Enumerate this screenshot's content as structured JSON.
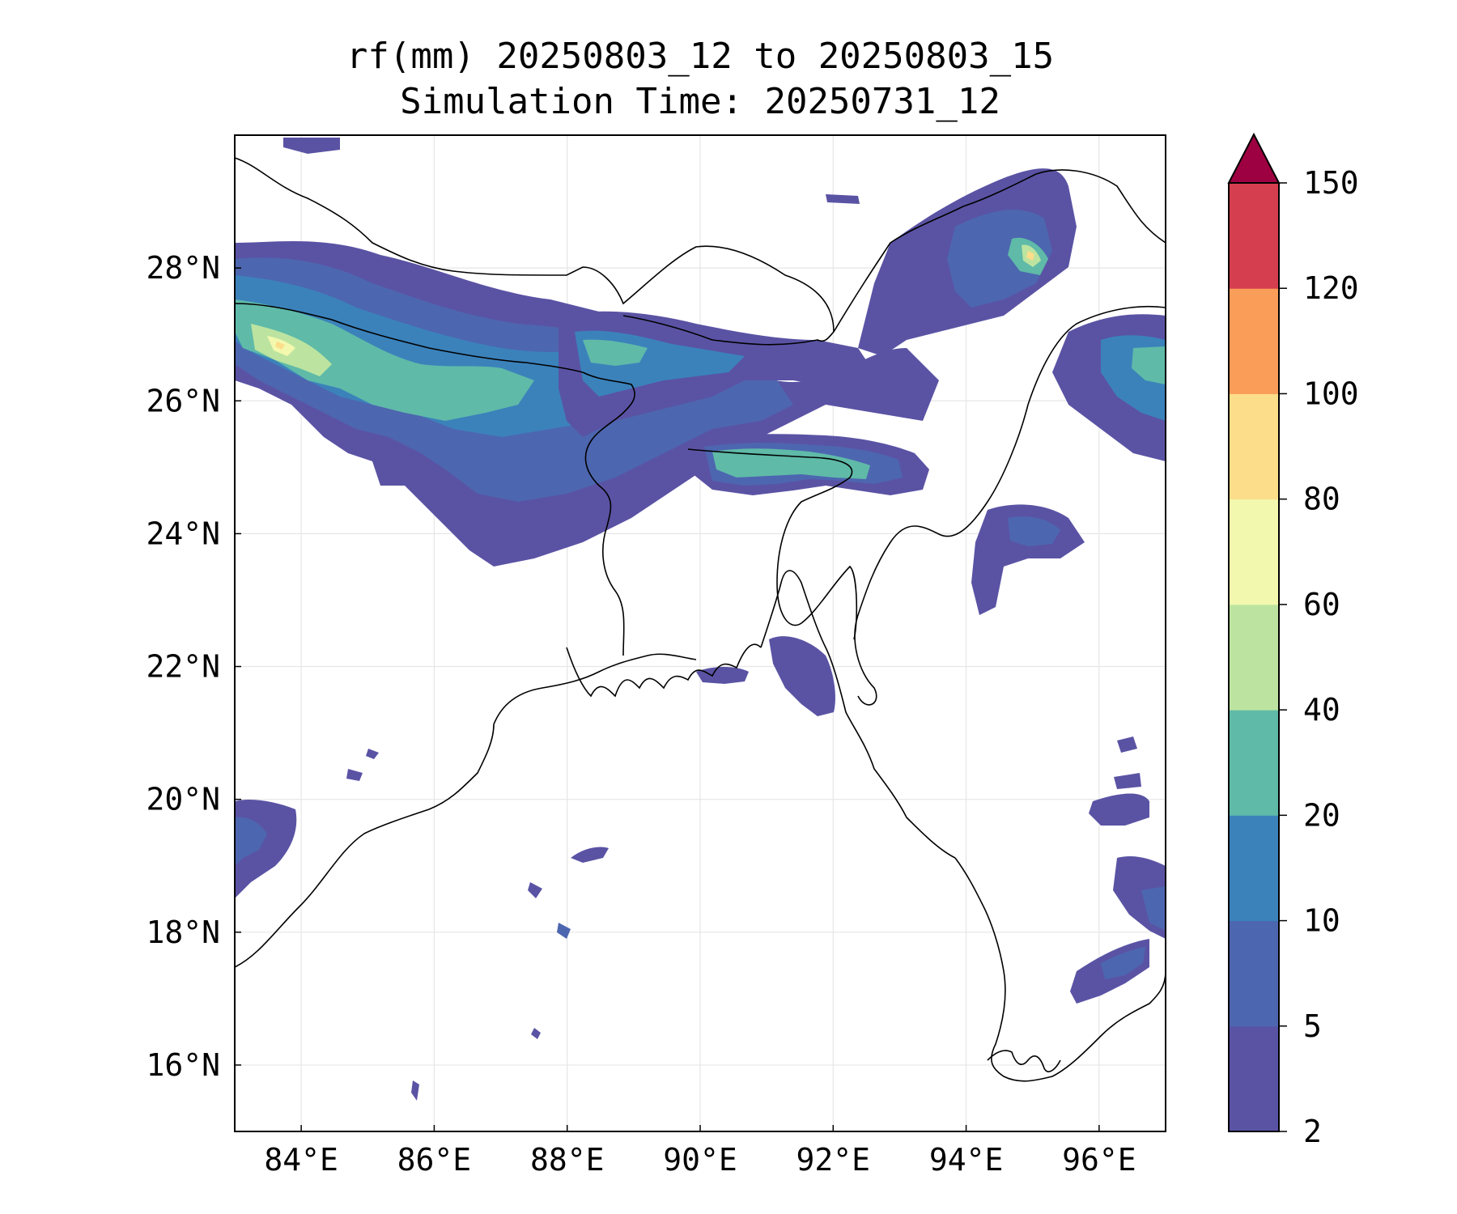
{
  "title": {
    "line1": "rf(mm) 20250803_12 to 20250803_15",
    "line2": "Simulation Time: 20250731_12"
  },
  "map": {
    "lon_range": [
      83.0,
      97.0
    ],
    "lat_range": [
      15.0,
      30.0
    ],
    "lon_ticks": [
      84,
      86,
      88,
      90,
      92,
      94,
      96
    ],
    "lon_tick_labels": [
      "84°E",
      "86°E",
      "88°E",
      "90°E",
      "92°E",
      "94°E",
      "96°E"
    ],
    "lat_ticks": [
      16,
      18,
      20,
      22,
      24,
      26,
      28
    ],
    "lat_tick_labels": [
      "16°N",
      "18°N",
      "20°N",
      "22°N",
      "24°N",
      "26°N",
      "28°N"
    ],
    "grid": true,
    "coastline_color": "#000000"
  },
  "colorbar": {
    "levels": [
      2,
      5,
      10,
      20,
      40,
      60,
      80,
      100,
      120,
      150
    ],
    "labels": [
      "2",
      "5",
      "10",
      "20",
      "40",
      "60",
      "80",
      "100",
      "120",
      "150"
    ],
    "colors": [
      "#5a53a4",
      "#4d66b0",
      "#3b82bb",
      "#5fbaa8",
      "#bce4a0",
      "#f2f8ad",
      "#fcdd8a",
      "#f99d59",
      "#d53e4f"
    ],
    "extend_color": "#9e0142",
    "extend": "max"
  }
}
